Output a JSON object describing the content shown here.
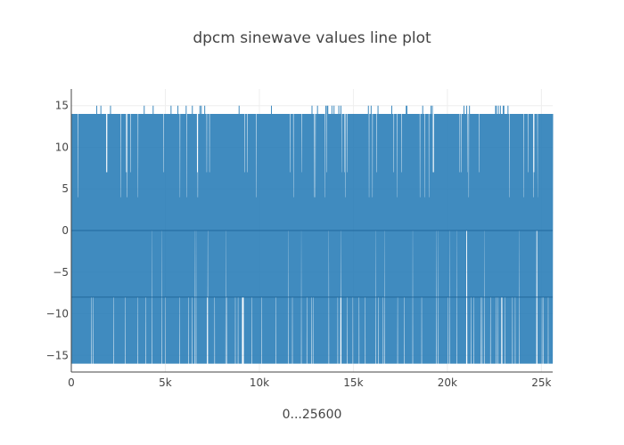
{
  "chart_data": {
    "type": "line",
    "title": "dpcm sinewave values line plot",
    "xlabel": "0...25600",
    "ylabel": "",
    "xlim": [
      0,
      25600
    ],
    "ylim": [
      -17,
      17
    ],
    "x_ticks": [
      {
        "value": 0,
        "label": "0"
      },
      {
        "value": 5000,
        "label": "5k"
      },
      {
        "value": 10000,
        "label": "10k"
      },
      {
        "value": 15000,
        "label": "15k"
      },
      {
        "value": 20000,
        "label": "20k"
      },
      {
        "value": 25000,
        "label": "25k"
      }
    ],
    "y_ticks": [
      {
        "value": 15,
        "label": "15"
      },
      {
        "value": 10,
        "label": "10"
      },
      {
        "value": 5,
        "label": "5"
      },
      {
        "value": 0,
        "label": "0"
      },
      {
        "value": -5,
        "label": "−5"
      },
      {
        "value": -10,
        "label": "−10"
      },
      {
        "value": -15,
        "label": "−15"
      }
    ],
    "grid": true,
    "legend": "none",
    "series": [
      {
        "color": "#1f77b4",
        "x_range": [
          0,
          25600
        ],
        "value_levels": [
          15,
          14,
          7,
          4,
          0,
          -8,
          -16
        ],
        "dominant_range": [
          -16,
          14
        ]
      }
    ]
  }
}
